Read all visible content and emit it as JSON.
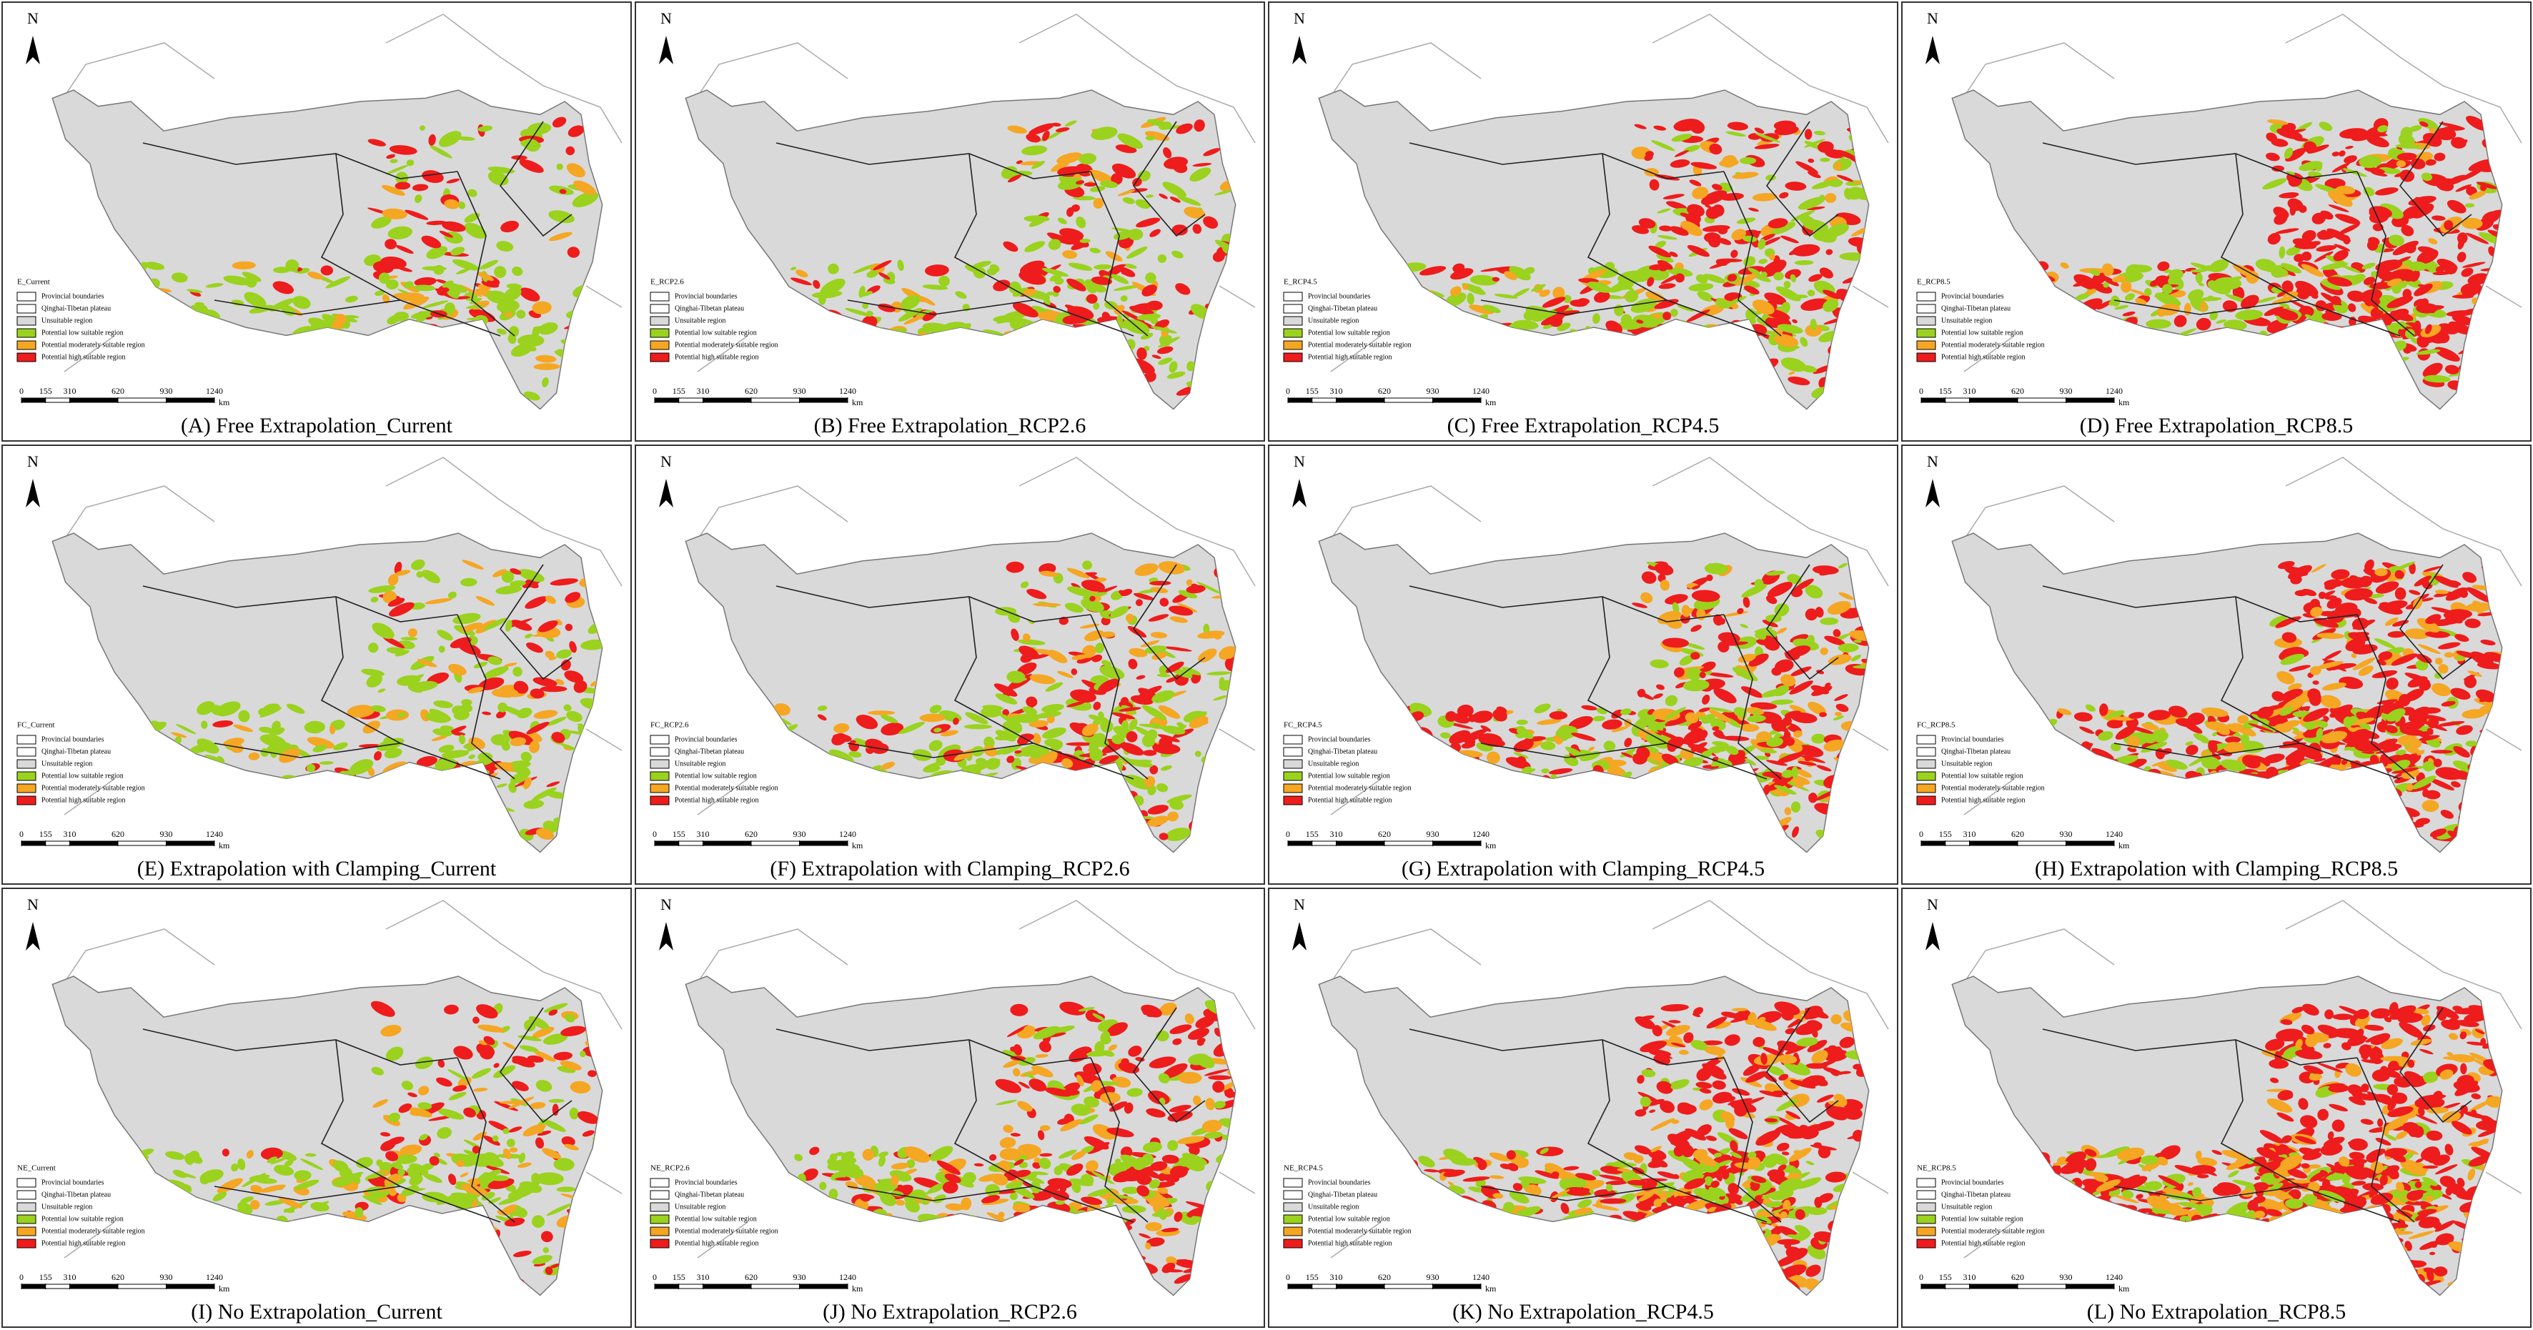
{
  "north": "N",
  "legend": {
    "items": [
      {
        "label": "Provincial boundaries",
        "color": "#ffffff"
      },
      {
        "label": "Qinghai-Tibetan plateau",
        "color": "#ffffff"
      },
      {
        "label": "Unsuitable region",
        "color": "#d9d9d9"
      },
      {
        "label": "Potential low suitable region",
        "color": "#9ad21e"
      },
      {
        "label": "Potential moderately suitable region",
        "color": "#f5a623"
      },
      {
        "label": "Potential high suitable region",
        "color": "#ee1c1c"
      }
    ]
  },
  "scale_bar": {
    "ticks": [
      0,
      155,
      310,
      620,
      930,
      1240
    ],
    "unit": "km"
  },
  "panels": [
    {
      "legend_title": "E_Current",
      "caption": "(A) Free Extrapolation_Current"
    },
    {
      "legend_title": "E_RCP2.6",
      "caption": "(B) Free Extrapolation_RCP2.6"
    },
    {
      "legend_title": "E_RCP4.5",
      "caption": "(C) Free Extrapolation_RCP4.5"
    },
    {
      "legend_title": "E_RCP8.5",
      "caption": "(D) Free Extrapolation_RCP8.5"
    },
    {
      "legend_title": "FC_Current",
      "caption": "(E) Extrapolation with Clamping_Current"
    },
    {
      "legend_title": "FC_RCP2.6",
      "caption": "(F) Extrapolation with Clamping_RCP2.6"
    },
    {
      "legend_title": "FC_RCP4.5",
      "caption": "(G) Extrapolation with Clamping_RCP4.5"
    },
    {
      "legend_title": "FC_RCP8.5",
      "caption": "(H) Extrapolation with Clamping_RCP8.5"
    },
    {
      "legend_title": "NE_Current",
      "caption": "(I) No Extrapolation_Current"
    },
    {
      "legend_title": "NE_RCP2.6",
      "caption": "(J) No Extrapolation_RCP2.6"
    },
    {
      "legend_title": "NE_RCP4.5",
      "caption": "(K) No Extrapolation_RCP4.5"
    },
    {
      "legend_title": "NE_RCP8.5",
      "caption": "(L) No Extrapolation_RCP8.5"
    }
  ]
}
